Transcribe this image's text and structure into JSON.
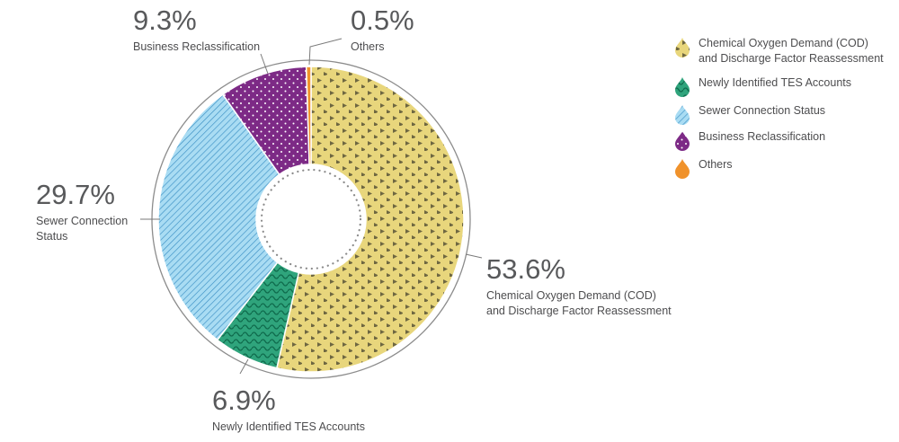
{
  "chart_data": {
    "type": "pie",
    "title": "",
    "slices": [
      {
        "name": "Chemical Oxygen Demand (COD) and Discharge Factor Reassessment",
        "label_lines": [
          "Chemical Oxygen Demand (COD)",
          "and Discharge Factor Reassessment"
        ],
        "value": 53.6,
        "pct_label": "53.6%",
        "color": "#e8d67c",
        "pattern": "triangles"
      },
      {
        "name": "Newly Identified TES Accounts",
        "label_lines": [
          "Newly Identified TES Accounts"
        ],
        "value": 6.9,
        "pct_label": "6.9%",
        "color": "#2fa47c",
        "pattern": "waves"
      },
      {
        "name": "Sewer Connection Status",
        "label_lines": [
          "Sewer Connection",
          "Status"
        ],
        "value": 29.7,
        "pct_label": "29.7%",
        "color": "#8fd3f2",
        "pattern": "stripes"
      },
      {
        "name": "Business Reclassification",
        "label_lines": [
          "Business Reclassification"
        ],
        "value": 9.3,
        "pct_label": "9.3%",
        "color": "#7d2a86",
        "pattern": "dots"
      },
      {
        "name": "Others",
        "label_lines": [
          "Others"
        ],
        "value": 0.5,
        "pct_label": "0.5%",
        "color": "#f0922b",
        "pattern": "solid"
      }
    ],
    "legend": {
      "position": "top-right",
      "items": [
        {
          "label_lines": [
            "Chemical Oxygen Demand (COD)",
            "and Discharge Factor Reassessment"
          ]
        },
        {
          "label_lines": [
            "Newly Identified TES Accounts"
          ]
        },
        {
          "label_lines": [
            "Sewer Connection Status"
          ]
        },
        {
          "label_lines": [
            "Business Reclassification"
          ]
        },
        {
          "label_lines": [
            "Others"
          ]
        }
      ]
    }
  }
}
